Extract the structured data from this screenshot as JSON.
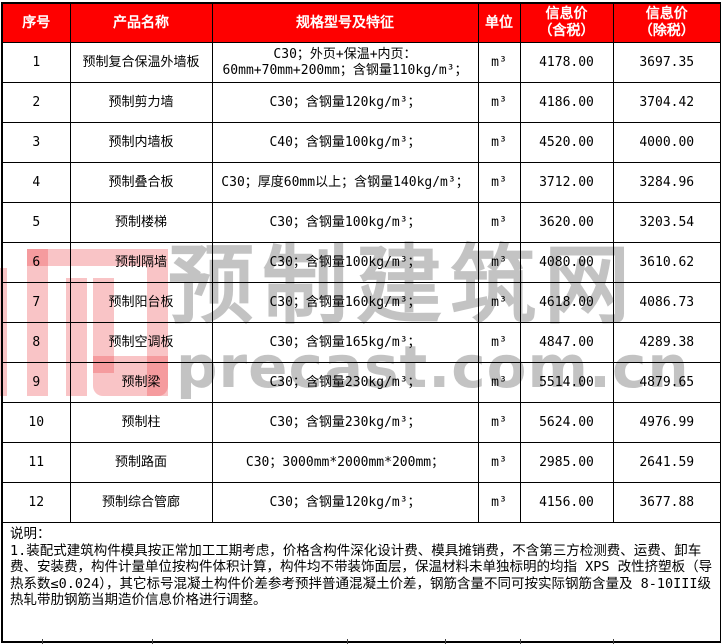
{
  "colors": {
    "header_bg": "#fe0000",
    "header_text": "#ffffff",
    "border": "#000000",
    "watermark_pink": "#f3b9bb",
    "watermark_gray": "#c3c3c3"
  },
  "watermark": {
    "logo_icon": "precast-logo",
    "text_cn": "预制建筑网",
    "text_en": "precast.com.cn"
  },
  "table": {
    "columns": [
      {
        "label": "序号"
      },
      {
        "label": "产品名称"
      },
      {
        "label": "规格型号及特征"
      },
      {
        "label": "单位"
      },
      {
        "label": "信息价",
        "sub": "（含税）"
      },
      {
        "label": "信息价",
        "sub": "（除税）"
      }
    ],
    "rows": [
      {
        "index": "1",
        "name": "预制复合保温外墙板",
        "spec": "C30；外页+保温+内页：60mm+70mm+200mm；含钢量110kg/m³；",
        "unit": "m³",
        "price_incl": "4178.00",
        "price_excl": "3697.35"
      },
      {
        "index": "2",
        "name": "预制剪力墙",
        "spec": "C30；含钢量120kg/m³；",
        "unit": "m³",
        "price_incl": "4186.00",
        "price_excl": "3704.42"
      },
      {
        "index": "3",
        "name": "预制内墙板",
        "spec": "C40；含钢量100kg/m³；",
        "unit": "m³",
        "price_incl": "4520.00",
        "price_excl": "4000.00"
      },
      {
        "index": "4",
        "name": "预制叠合板",
        "spec": "C30；厚度60mm以上；含钢量140kg/m³；",
        "unit": "m³",
        "price_incl": "3712.00",
        "price_excl": "3284.96"
      },
      {
        "index": "5",
        "name": "预制楼梯",
        "spec": "C30；含钢量100kg/m³；",
        "unit": "m³",
        "price_incl": "3620.00",
        "price_excl": "3203.54"
      },
      {
        "index": "6",
        "name": "预制隔墙",
        "spec": "C30；含钢量100kg/m³；",
        "unit": "m³",
        "price_incl": "4080.00",
        "price_excl": "3610.62"
      },
      {
        "index": "7",
        "name": "预制阳台板",
        "spec": "C30；含钢量160kg/m³；",
        "unit": "m³",
        "price_incl": "4618.00",
        "price_excl": "4086.73"
      },
      {
        "index": "8",
        "name": "预制空调板",
        "spec": "C30；含钢量165kg/m³；",
        "unit": "m³",
        "price_incl": "4847.00",
        "price_excl": "4289.38"
      },
      {
        "index": "9",
        "name": "预制梁",
        "spec": "C30；含钢量230kg/m³；",
        "unit": "m³",
        "price_incl": "5514.00",
        "price_excl": "4879.65"
      },
      {
        "index": "10",
        "name": "预制柱",
        "spec": "C30；含钢量230kg/m³；",
        "unit": "m³",
        "price_incl": "5624.00",
        "price_excl": "4976.99"
      },
      {
        "index": "11",
        "name": "预制路面",
        "spec": "C30；3000mm*2000mm*200mm；",
        "unit": "m³",
        "price_incl": "2985.00",
        "price_excl": "2641.59"
      },
      {
        "index": "12",
        "name": "预制综合管廊",
        "spec": "C30；含钢量120kg/m³；",
        "unit": "m³",
        "price_incl": "4156.00",
        "price_excl": "3677.88"
      }
    ]
  },
  "notes": {
    "title": "说明：",
    "item1": "1.装配式建筑构件模具按正常加工工期考虑，价格含构件深化设计费、模具摊销费，不含第三方检测费、运费、卸车费、安装费，构件计量单位按构件体积计算，构件均不带装饰面层，保温材料未单独标明的均指 XPS 改性挤塑板（导热系数≤0.024），其它标号混凝土构件价差参考预拌普通混凝土价差，钢筋含量不同可按实际钢筋含量及 8-10III级热轧带肋钢筋当期造价信息价格进行调整。"
  }
}
